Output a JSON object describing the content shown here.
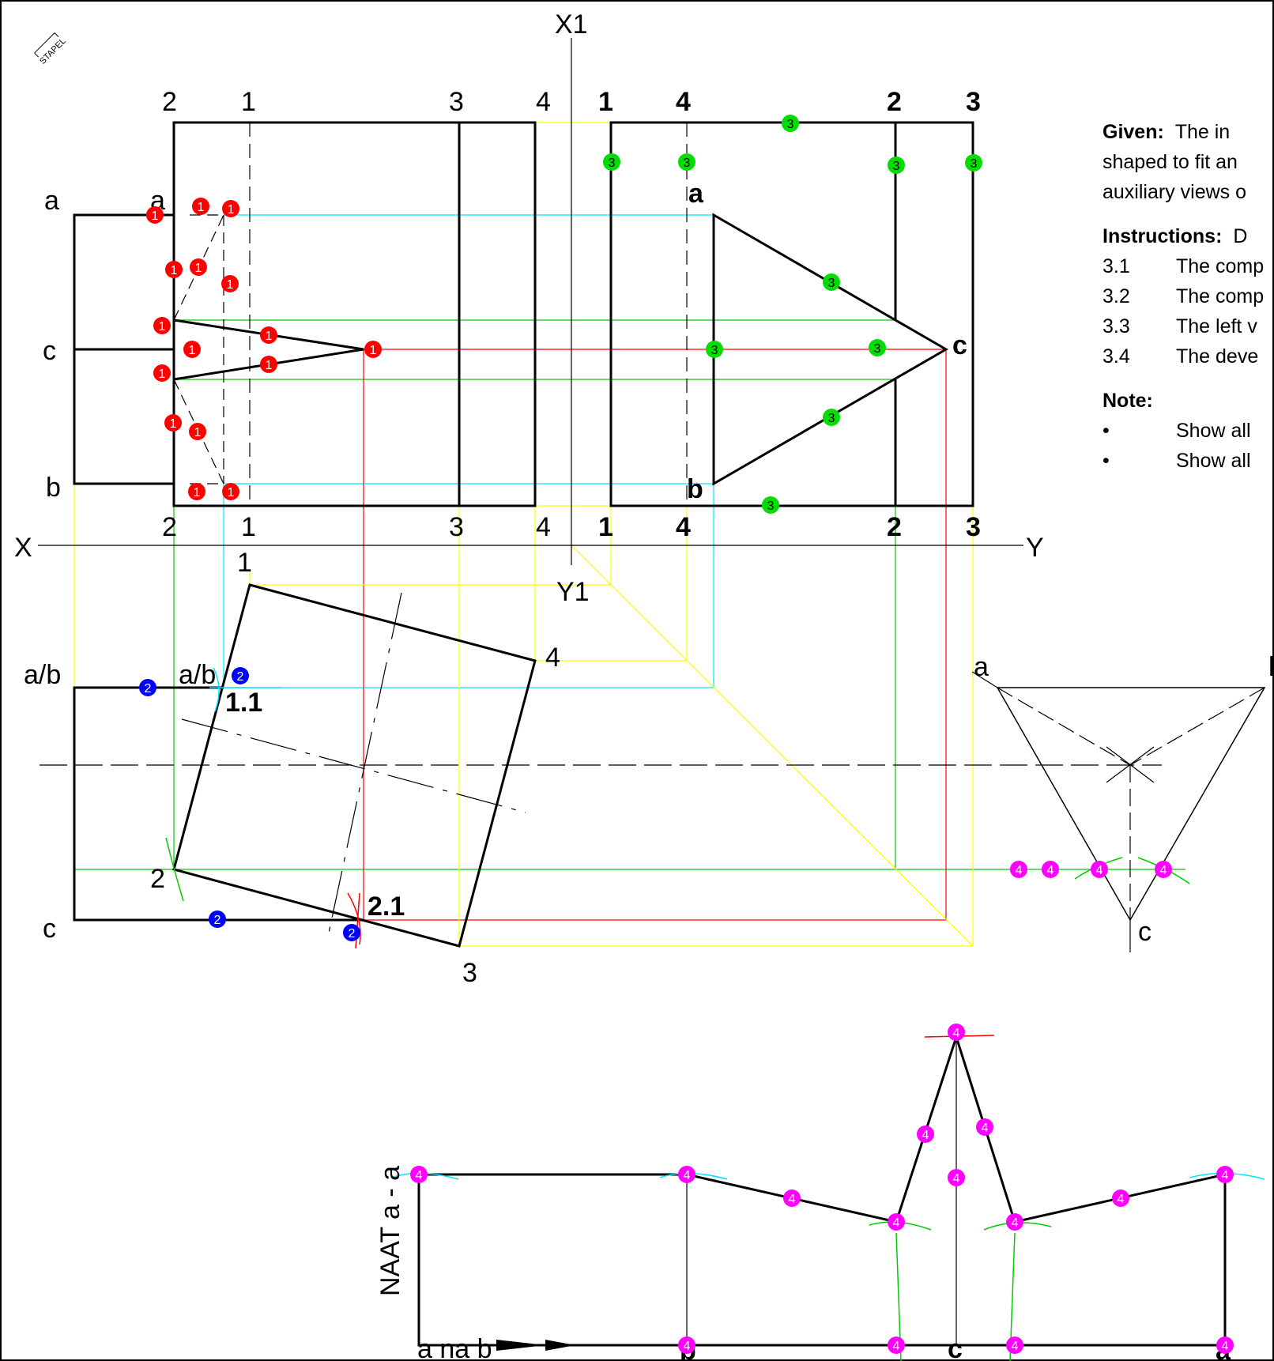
{
  "stamp": "STAPEL",
  "axes": {
    "x": "X",
    "y": "Y",
    "x1": "X1",
    "y1": "Y1"
  },
  "front_view_top_numbers": [
    "2",
    "1",
    "3",
    "4"
  ],
  "front_view_bottom_numbers": [
    "2",
    "1",
    "3",
    "4"
  ],
  "side_view_top_numbers": [
    "1",
    "4",
    "2",
    "3"
  ],
  "side_view_bottom_numbers": [
    "1",
    "4",
    "2",
    "3"
  ],
  "points": {
    "a": "a",
    "b": "b",
    "c": "c",
    "ab": "a/b"
  },
  "aux_numbers": [
    "1",
    "2",
    "3",
    "4"
  ],
  "aux_labels": {
    "p11": "1.1",
    "p21": "2.1"
  },
  "development": {
    "seam_label": "NAAT a - a",
    "direction_label": "a na b",
    "bottom_labels": [
      "b",
      "c",
      "a"
    ]
  },
  "given": {
    "heading": "Given:",
    "text1": "The in",
    "text2": "shaped to fit an",
    "text3": "auxiliary views o"
  },
  "instructions": {
    "heading": "Instructions:",
    "heading_tail": "D",
    "items": [
      {
        "num": "3.1",
        "text": "The comp"
      },
      {
        "num": "3.2",
        "text": "The comp"
      },
      {
        "num": "3.3",
        "text": "The left v"
      },
      {
        "num": "3.4",
        "text": "The deve"
      }
    ]
  },
  "note": {
    "heading": "Note:",
    "items": [
      {
        "bullet": "•",
        "text": "Show all"
      },
      {
        "bullet": "•",
        "text": "Show all"
      }
    ]
  },
  "markers": {
    "red": "1",
    "blue": "2",
    "green": "3",
    "magenta": "4"
  },
  "colors": {
    "red": "#ff0000",
    "blue": "#0000ff",
    "green": "#00dd00",
    "magenta": "#ff00ff",
    "cyan": "#00e5ff",
    "yellow": "#ffff00",
    "proj_green": "#00cc00"
  }
}
